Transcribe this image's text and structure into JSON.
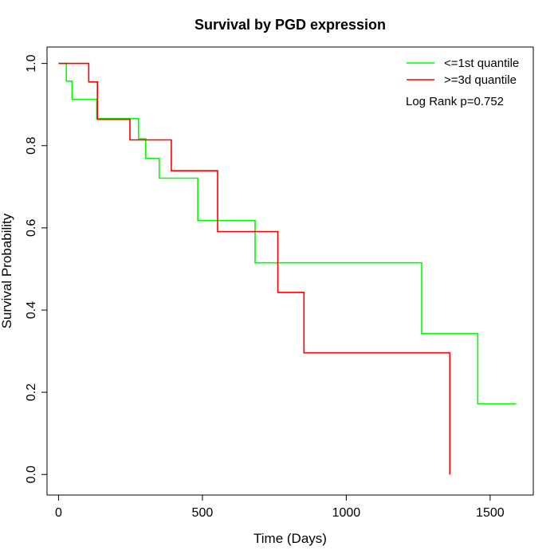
{
  "chart_data": {
    "type": "line",
    "title": "Survival by PGD expression",
    "xlabel": "Time (Days)",
    "ylabel": "Survival Probability",
    "xlim": [
      -40,
      1650
    ],
    "ylim": [
      -0.05,
      1.04
    ],
    "xticks": [
      0,
      500,
      1000,
      1500
    ],
    "yticks": [
      0.0,
      0.2,
      0.4,
      0.6,
      0.8,
      1.0
    ],
    "xtick_labels": [
      "0",
      "500",
      "1000",
      "1500"
    ],
    "ytick_labels": [
      "0.0",
      "0.2",
      "0.4",
      "0.6",
      "0.8",
      "1.0"
    ],
    "grid": false,
    "legend_position": "top-right",
    "annotation": "Log Rank p=0.752",
    "series": [
      {
        "name": "<=1st quantile",
        "color": "#00ff00",
        "step_points": [
          [
            0,
            1.0
          ],
          [
            27,
            1.0
          ],
          [
            27,
            0.957
          ],
          [
            47,
            0.957
          ],
          [
            47,
            0.913
          ],
          [
            133,
            0.913
          ],
          [
            133,
            0.866
          ],
          [
            278,
            0.866
          ],
          [
            278,
            0.817
          ],
          [
            303,
            0.817
          ],
          [
            303,
            0.769
          ],
          [
            350,
            0.769
          ],
          [
            350,
            0.721
          ],
          [
            484,
            0.721
          ],
          [
            484,
            0.618
          ],
          [
            683,
            0.618
          ],
          [
            683,
            0.515
          ],
          [
            1262,
            0.515
          ],
          [
            1262,
            0.343
          ],
          [
            1457,
            0.343
          ],
          [
            1457,
            0.172
          ],
          [
            1590,
            0.172
          ]
        ]
      },
      {
        "name": ">=3d quantile",
        "color": "#ff0000",
        "step_points": [
          [
            0,
            1.0
          ],
          [
            105,
            1.0
          ],
          [
            105,
            0.955
          ],
          [
            135,
            0.955
          ],
          [
            135,
            0.864
          ],
          [
            248,
            0.864
          ],
          [
            248,
            0.814
          ],
          [
            392,
            0.814
          ],
          [
            392,
            0.739
          ],
          [
            553,
            0.739
          ],
          [
            553,
            0.591
          ],
          [
            762,
            0.591
          ],
          [
            762,
            0.443
          ],
          [
            853,
            0.443
          ],
          [
            853,
            0.296
          ],
          [
            1360,
            0.296
          ],
          [
            1360,
            0.0
          ]
        ]
      }
    ]
  }
}
